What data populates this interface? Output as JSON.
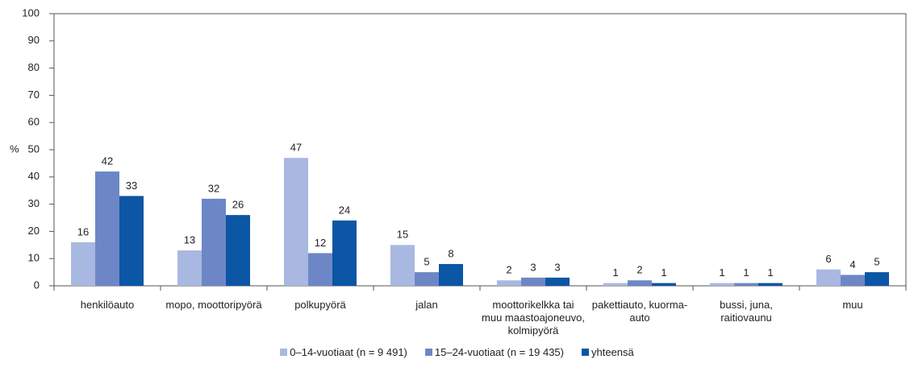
{
  "chart_data": {
    "type": "bar",
    "ylabel": "%",
    "categories": [
      "henkilöauto",
      "mopo, moottoripyörä",
      "polkupyörä",
      "jalan",
      "moottorikelkka tai muu maastoajoneuvo, kolmipyörä",
      "pakettiauto, kuorma-auto",
      "bussi, juna, raitiovaunu",
      "muu"
    ],
    "series": [
      {
        "name": "0–14-vuotiaat (n = 9 491)",
        "color": "#a9b8e0",
        "values": [
          16,
          13,
          47,
          15,
          2,
          1,
          1,
          6
        ]
      },
      {
        "name": "15–24-vuotiaat (n = 19 435)",
        "color": "#6d87c6",
        "values": [
          42,
          32,
          12,
          5,
          3,
          2,
          1,
          4
        ]
      },
      {
        "name": "yhteensä",
        "color": "#0b56a5",
        "values": [
          33,
          26,
          24,
          8,
          3,
          1,
          1,
          5
        ]
      }
    ],
    "ylim": [
      0,
      100
    ],
    "yticks": [
      0,
      10,
      20,
      30,
      40,
      50,
      60,
      70,
      80,
      90,
      100
    ],
    "grid": false,
    "legend": "bottom"
  }
}
